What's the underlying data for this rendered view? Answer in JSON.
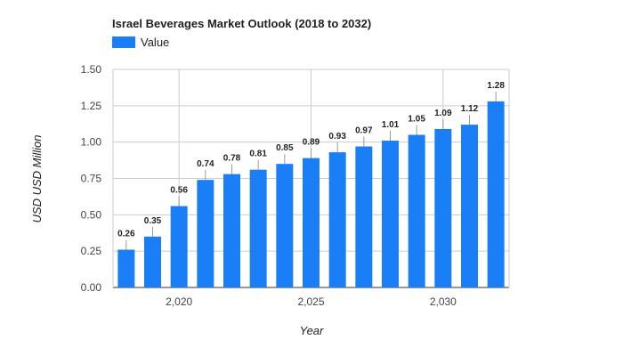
{
  "chart_data": {
    "type": "bar",
    "title": "Israel Beverages Market Outlook (2018 to 2032)",
    "xlabel": "Year",
    "ylabel": "USD USD Million",
    "x": [
      2018,
      2019,
      2020,
      2021,
      2022,
      2023,
      2024,
      2025,
      2026,
      2027,
      2028,
      2029,
      2030,
      2031,
      2032
    ],
    "series": [
      {
        "name": "Value",
        "color": "#1a7ef7",
        "values": [
          0.26,
          0.35,
          0.56,
          0.74,
          0.78,
          0.81,
          0.85,
          0.89,
          0.93,
          0.97,
          1.01,
          1.05,
          1.09,
          1.12,
          1.28
        ]
      }
    ],
    "data_labels": [
      "0.26",
      "0.35",
      "0.56",
      "0.74",
      "0.78",
      "0.81",
      "0.85",
      "0.89",
      "0.93",
      "0.97",
      "1.01",
      "1.05",
      "1.09",
      "1.12",
      "1.28"
    ],
    "ylim": [
      0,
      1.5
    ],
    "yticks": [
      "0.00",
      "0.25",
      "0.50",
      "0.75",
      "1.00",
      "1.25",
      "1.50"
    ],
    "xticks": [
      {
        "value": 2020,
        "label": "2,020"
      },
      {
        "value": 2025,
        "label": "2,025"
      },
      {
        "value": 2030,
        "label": "2,030"
      }
    ],
    "grid": true,
    "legend": "top-left"
  }
}
